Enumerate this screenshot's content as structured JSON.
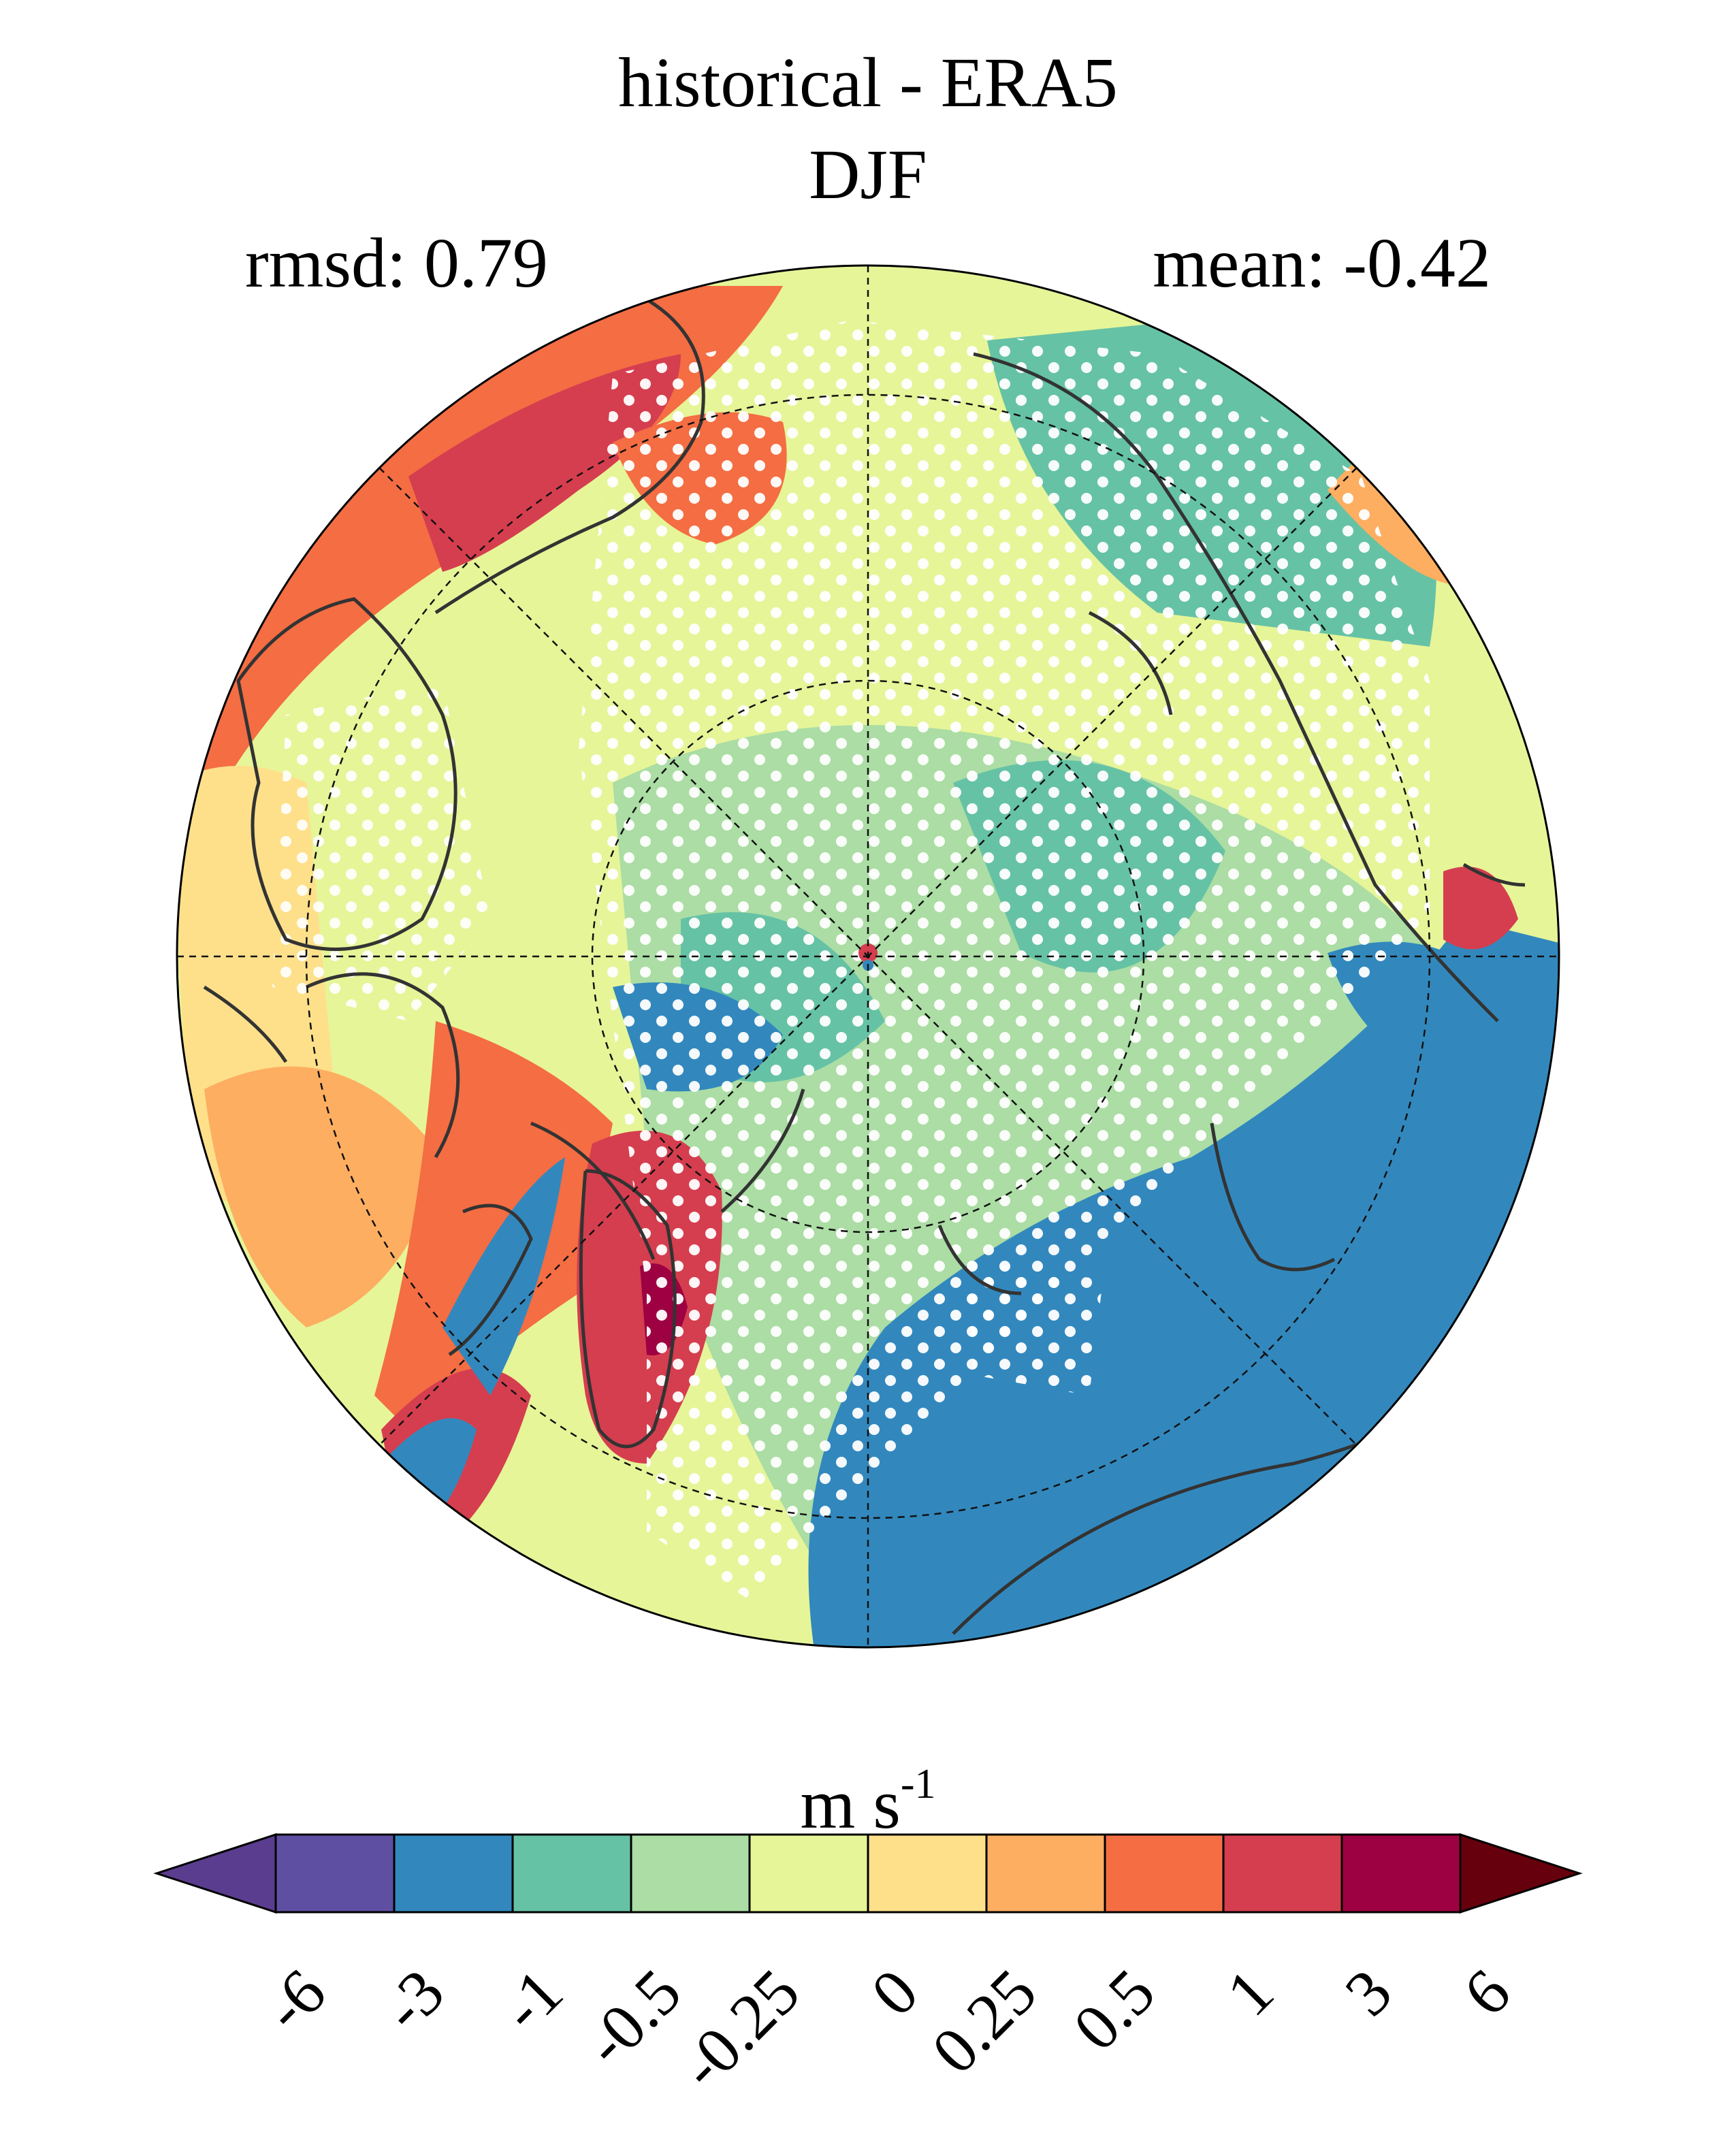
{
  "title": "historical - ERA5",
  "season": "DJF",
  "rmsd_label": "rmsd: 0.79",
  "mean_label": "mean: -0.42",
  "units": {
    "base": "m s",
    "exponent": "-1"
  },
  "colorbar": {
    "ticks": [
      "-6",
      "-3",
      "-1",
      "-0.5",
      "-0.25",
      "0",
      "0.25",
      "0.5",
      "1",
      "3",
      "6"
    ],
    "colors": [
      "#5e4fa2",
      "#3288bd",
      "#66c2a5",
      "#abdda4",
      "#e6f598",
      "#fee08b",
      "#fdae61",
      "#f46d43",
      "#d53e4f",
      "#9e0142"
    ],
    "under_color": "#5a3d8f",
    "over_color": "#67000d",
    "extend": "both"
  },
  "map": {
    "projection": "north-polar-stereographic",
    "stippling": "white dots mark significant regions",
    "coastline_color": "#333333",
    "gridlines": "dashed"
  }
}
